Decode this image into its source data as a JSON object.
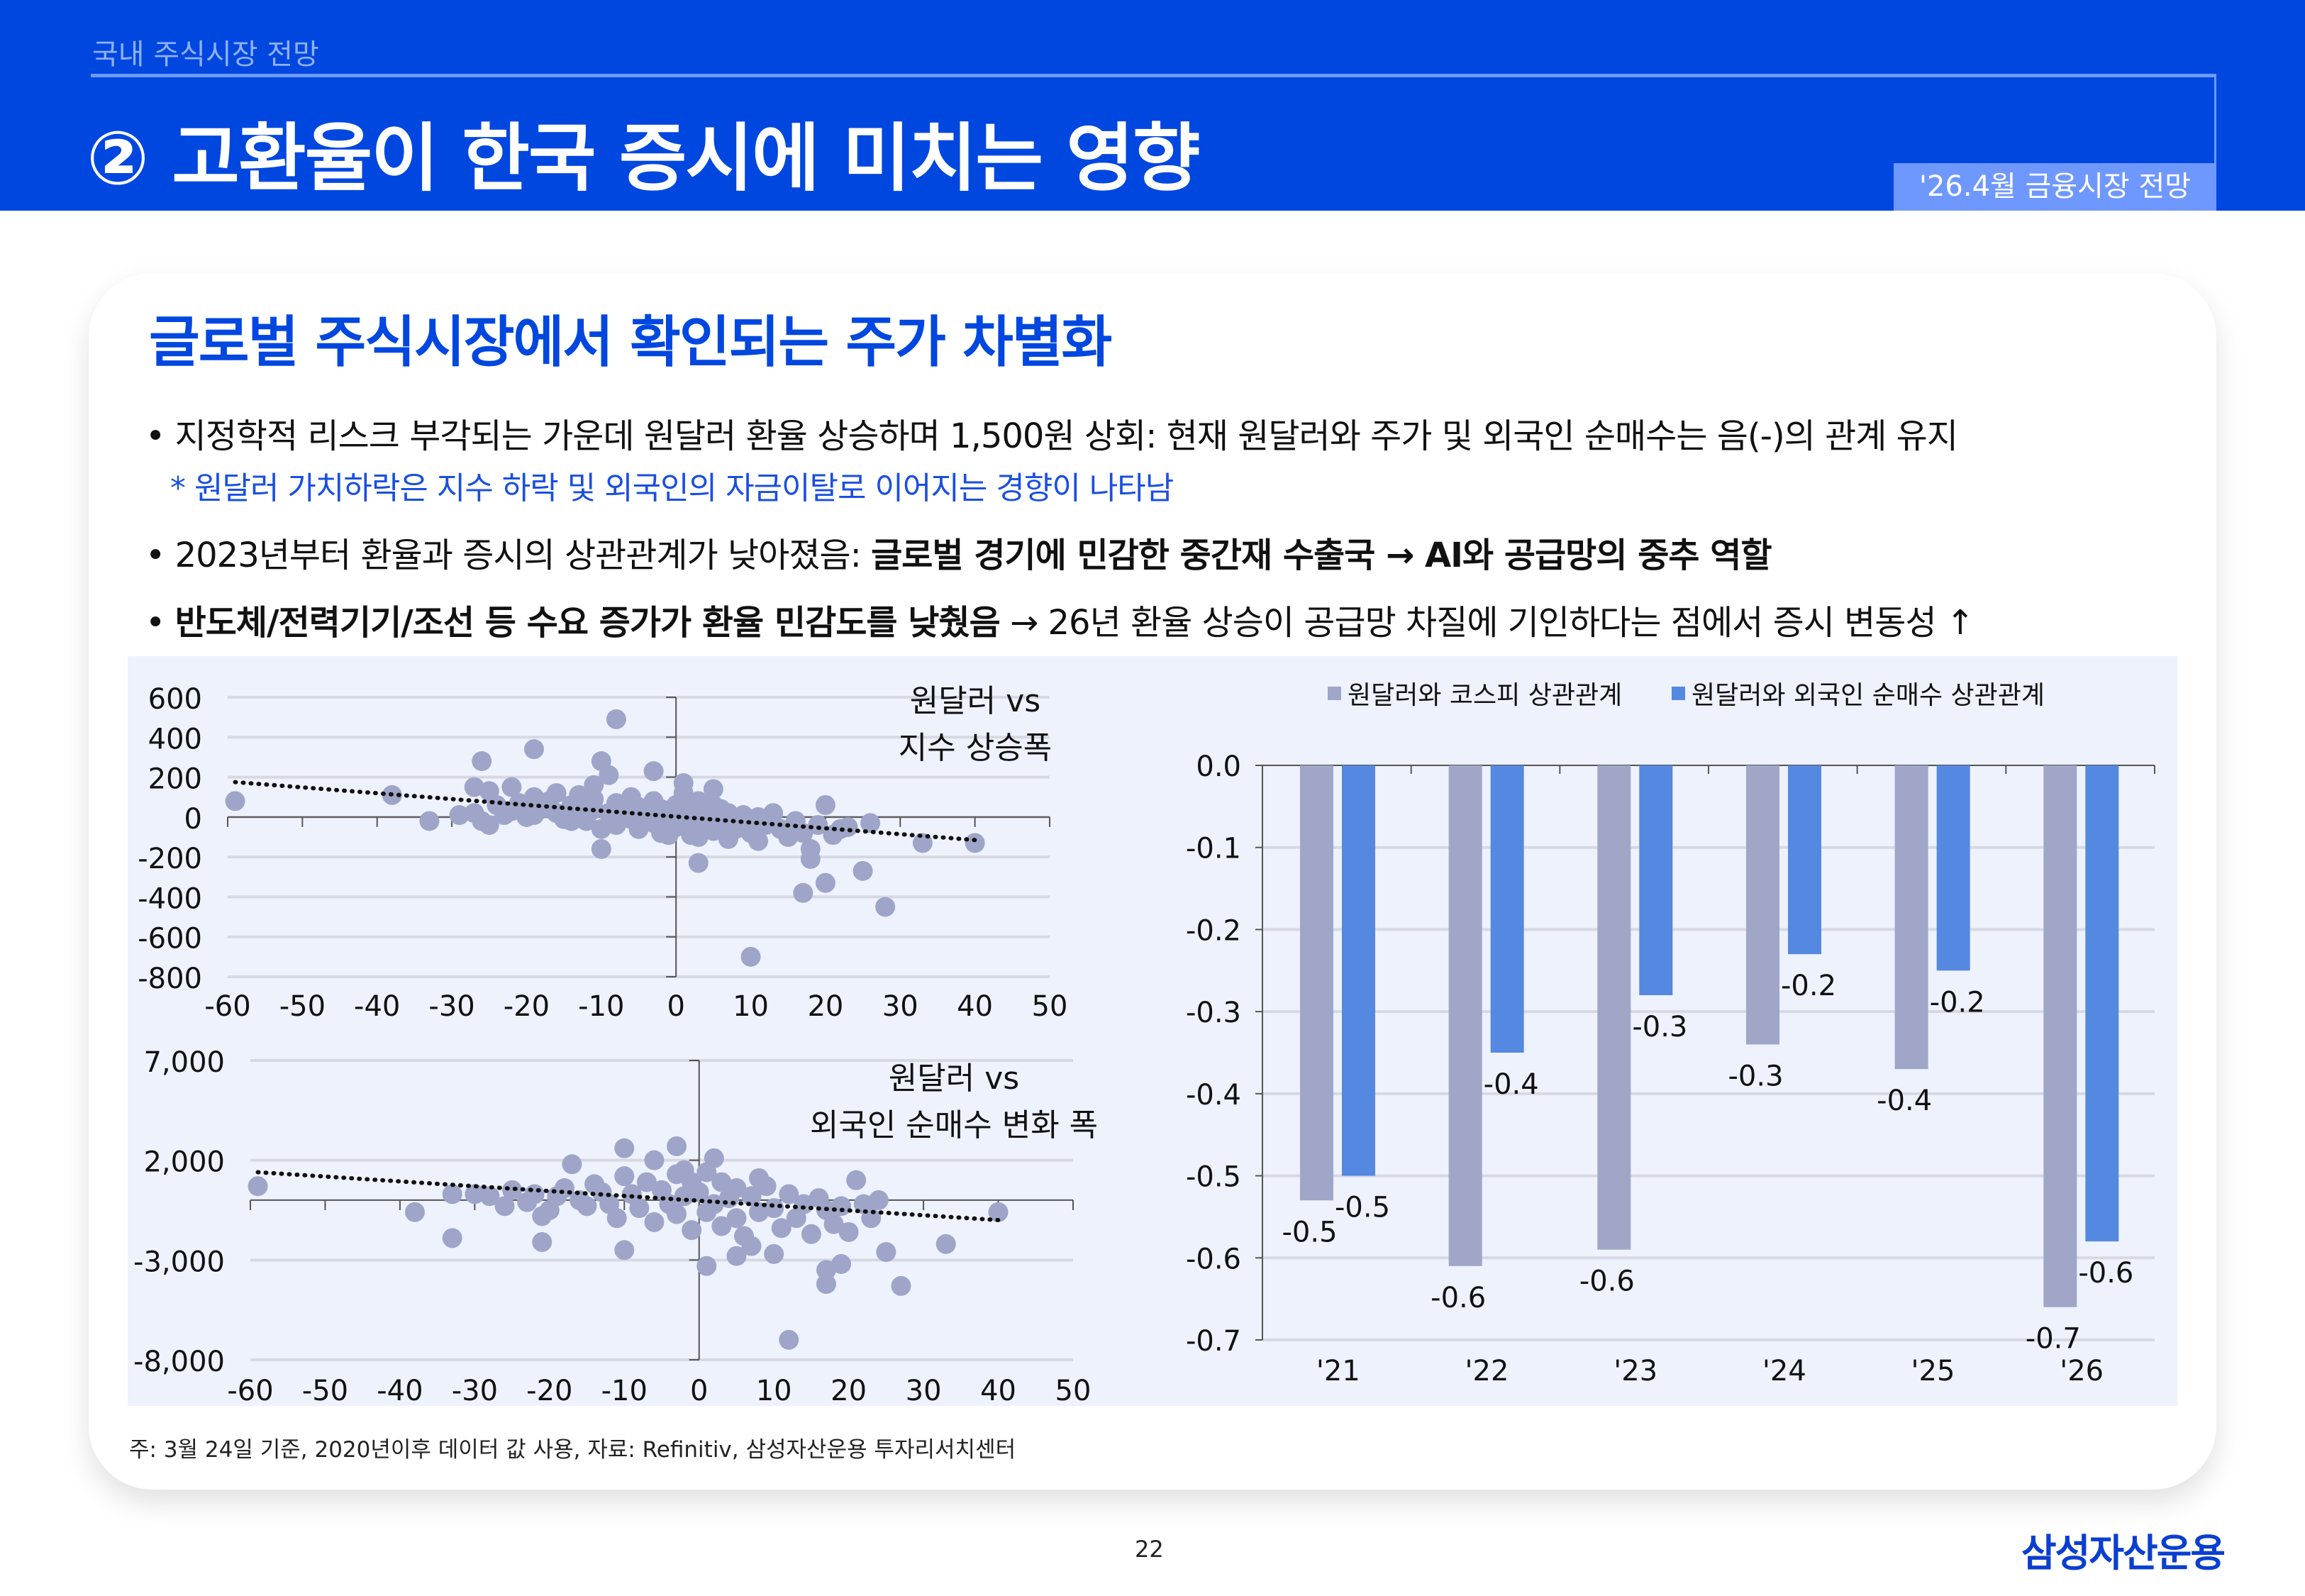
{
  "header": {
    "section": "국내 주식시장 전망",
    "title": "② 고환율이 한국 증시에 미치는 영향",
    "badge": "'26.4월 금융시장 전망"
  },
  "card": {
    "title": "글로벌 주식시장에서 확인되는 주가 차별화",
    "bullets": [
      {
        "normal": "• 지정학적 리스크 부각되는 가운데 원달러 환율 상승하며 1,500원 상회: 현재 원달러와 주가 및 외국인 순매수는 음(-)의 관계 유지",
        "bold": "",
        "tail": ""
      },
      {
        "normal": "• 2023년부터 환율과 증시의 상관관계가 낮아졌음: ",
        "bold": "글로벌 경기에 민감한 중간재 수출국 → AI와 공급망의 중추 역할",
        "tail": ""
      },
      {
        "normal": "• ",
        "bold": "반도체/전력기기/조선 등 수요 증가가 환율 민감도를 낮췄음",
        "tail": " → 26년 환율 상승이 공급망 차질에 기인하다는 점에서 증시 변동성 ↑"
      }
    ],
    "note": "* 원달러 가치하락은 지수 하락 및 외국인의 자금이탈로 이어지는 경향이 나타남"
  },
  "colors": {
    "brand": "#0047e0",
    "scatter": "#9ea5c8",
    "bar_kospi": "#a0a6c8",
    "bar_foreign": "#5588e0",
    "chart_bg": "#eef2fd"
  },
  "chart_data": [
    {
      "type": "scatter",
      "annotation": [
        "원달러 vs",
        "지수 상승폭"
      ],
      "xlim": [
        -60,
        50
      ],
      "ylim": [
        -800,
        600
      ],
      "xticks": [
        -60,
        -50,
        -40,
        -30,
        -20,
        -10,
        0,
        10,
        20,
        30,
        40,
        50
      ],
      "yticks": [
        600,
        400,
        200,
        0,
        -200,
        -400,
        -600,
        -800
      ],
      "grid": true,
      "trendline": {
        "style": "dotted",
        "from": [
          -59,
          175
        ],
        "to": [
          40,
          -115
        ]
      },
      "points": [
        [
          -59,
          80
        ],
        [
          -38,
          110
        ],
        [
          -33,
          -20
        ],
        [
          -29,
          10
        ],
        [
          -27,
          150
        ],
        [
          -26,
          280
        ],
        [
          -25,
          130
        ],
        [
          -22,
          150
        ],
        [
          -19,
          340
        ],
        [
          -19,
          100
        ],
        [
          -16,
          120
        ],
        [
          -13,
          110
        ],
        [
          -11,
          160
        ],
        [
          -10,
          280
        ],
        [
          -10,
          -160
        ],
        [
          -9,
          210
        ],
        [
          -3,
          230
        ],
        [
          -8,
          490
        ],
        [
          1,
          170
        ],
        [
          3,
          -230
        ],
        [
          5,
          140
        ],
        [
          10,
          -700
        ],
        [
          17,
          -380
        ],
        [
          18,
          -160
        ],
        [
          18,
          -210
        ],
        [
          20,
          -330
        ],
        [
          20,
          60
        ],
        [
          25,
          -270
        ],
        [
          26,
          -30
        ],
        [
          28,
          -450
        ],
        [
          33,
          -130
        ],
        [
          40,
          -130
        ],
        [
          -27,
          20
        ],
        [
          -26,
          -20
        ],
        [
          -25,
          -40
        ],
        [
          -24,
          60
        ],
        [
          -23,
          10
        ],
        [
          -22,
          30
        ],
        [
          -21,
          70
        ],
        [
          -20,
          0
        ],
        [
          -20,
          50
        ],
        [
          -18,
          40
        ],
        [
          -17,
          80
        ],
        [
          -16,
          20
        ],
        [
          -15,
          -10
        ],
        [
          -14,
          60
        ],
        [
          -13,
          30
        ],
        [
          -12,
          -20
        ],
        [
          -11,
          90
        ],
        [
          -11,
          40
        ],
        [
          -10,
          -60
        ],
        [
          -9,
          20
        ],
        [
          -8,
          70
        ],
        [
          -8,
          -40
        ],
        [
          -7,
          30
        ],
        [
          -6,
          100
        ],
        [
          -6,
          -10
        ],
        [
          -5,
          50
        ],
        [
          -5,
          -60
        ],
        [
          -4,
          20
        ],
        [
          -3,
          80
        ],
        [
          -3,
          -30
        ],
        [
          -2,
          40
        ],
        [
          -2,
          -80
        ],
        [
          -1,
          10
        ],
        [
          0,
          60
        ],
        [
          0,
          -50
        ],
        [
          1,
          120
        ],
        [
          1,
          -20
        ],
        [
          2,
          30
        ],
        [
          2,
          -90
        ],
        [
          3,
          80
        ],
        [
          3,
          -40
        ],
        [
          4,
          10
        ],
        [
          5,
          60
        ],
        [
          5,
          -70
        ],
        [
          6,
          -20
        ],
        [
          7,
          20
        ],
        [
          7,
          -110
        ],
        [
          8,
          -60
        ],
        [
          9,
          10
        ],
        [
          9,
          -30
        ],
        [
          10,
          -80
        ],
        [
          11,
          0
        ],
        [
          11,
          -120
        ],
        [
          12,
          -40
        ],
        [
          13,
          20
        ],
        [
          14,
          -60
        ],
        [
          15,
          -100
        ],
        [
          16,
          -20
        ],
        [
          17,
          -80
        ],
        [
          19,
          -40
        ],
        [
          21,
          -90
        ],
        [
          22,
          -60
        ],
        [
          23,
          -50
        ],
        [
          3,
          -100
        ],
        [
          -1,
          -90
        ],
        [
          6,
          40
        ],
        [
          -14,
          -20
        ],
        [
          -19,
          10
        ]
      ]
    },
    {
      "type": "scatter",
      "annotation": [
        "원달러 vs",
        "외국인 순매수 변화 폭"
      ],
      "xlim": [
        -60,
        50
      ],
      "ylim": [
        -8000,
        7000
      ],
      "xticks": [
        -60,
        -50,
        -40,
        -30,
        -20,
        -10,
        0,
        10,
        20,
        30,
        40,
        50
      ],
      "yticks": [
        7000,
        2000,
        -3000,
        -8000
      ],
      "grid": true,
      "trendline": {
        "style": "dotted",
        "from": [
          -59,
          1400
        ],
        "to": [
          40,
          -1000
        ]
      },
      "points": [
        [
          -59,
          700
        ],
        [
          -38,
          -600
        ],
        [
          -33,
          300
        ],
        [
          -33,
          -1900
        ],
        [
          -21,
          -2100
        ],
        [
          -17,
          1800
        ],
        [
          -10,
          2600
        ],
        [
          -10,
          -2500
        ],
        [
          -3,
          2700
        ],
        [
          -2,
          1500
        ],
        [
          1,
          -3300
        ],
        [
          2,
          2100
        ],
        [
          10,
          -2700
        ],
        [
          12,
          -7000
        ],
        [
          17,
          -4200
        ],
        [
          17,
          -3500
        ],
        [
          19,
          -3200
        ],
        [
          21,
          1000
        ],
        [
          25,
          -2600
        ],
        [
          27,
          -4300
        ],
        [
          33,
          -2200
        ],
        [
          40,
          -600
        ],
        [
          8,
          1100
        ],
        [
          -6,
          2000
        ],
        [
          5,
          -2800
        ],
        [
          -28,
          200
        ],
        [
          -26,
          -300
        ],
        [
          -25,
          500
        ],
        [
          -23,
          -100
        ],
        [
          -22,
          300
        ],
        [
          -20,
          -500
        ],
        [
          -19,
          200
        ],
        [
          -18,
          600
        ],
        [
          -16,
          0
        ],
        [
          -15,
          -300
        ],
        [
          -14,
          800
        ],
        [
          -13,
          400
        ],
        [
          -12,
          -200
        ],
        [
          -11,
          -900
        ],
        [
          -10,
          1200
        ],
        [
          -9,
          300
        ],
        [
          -8,
          -400
        ],
        [
          -7,
          900
        ],
        [
          -6,
          -1100
        ],
        [
          -5,
          500
        ],
        [
          -4,
          -200
        ],
        [
          -3,
          1300
        ],
        [
          -3,
          -700
        ],
        [
          -2,
          200
        ],
        [
          -1,
          900
        ],
        [
          -1,
          -1500
        ],
        [
          0,
          400
        ],
        [
          1,
          -600
        ],
        [
          1,
          1400
        ],
        [
          2,
          -200
        ],
        [
          3,
          900
        ],
        [
          3,
          -1300
        ],
        [
          4,
          100
        ],
        [
          5,
          -900
        ],
        [
          5,
          600
        ],
        [
          6,
          -1800
        ],
        [
          7,
          200
        ],
        [
          7,
          -2300
        ],
        [
          8,
          -600
        ],
        [
          9,
          700
        ],
        [
          10,
          -400
        ],
        [
          11,
          -1400
        ],
        [
          12,
          300
        ],
        [
          13,
          -900
        ],
        [
          14,
          -200
        ],
        [
          15,
          -1700
        ],
        [
          16,
          100
        ],
        [
          17,
          -500
        ],
        [
          18,
          -1200
        ],
        [
          19,
          -300
        ],
        [
          20,
          -1600
        ],
        [
          22,
          -200
        ],
        [
          23,
          -900
        ],
        [
          24,
          0
        ],
        [
          -30,
          300
        ],
        [
          -21,
          -800
        ]
      ]
    },
    {
      "type": "bar",
      "categories": [
        "'21",
        "'22",
        "'23",
        "'24",
        "'25",
        "'26"
      ],
      "ylim": [
        -0.7,
        0.0
      ],
      "yticks": [
        "0.0",
        "-0.1",
        "-0.2",
        "-0.3",
        "-0.4",
        "-0.5",
        "-0.6",
        "-0.7"
      ],
      "grid": true,
      "legend_position": "top",
      "series": [
        {
          "name": "원달러와 코스피 상관관계",
          "values": [
            -0.53,
            -0.61,
            -0.59,
            -0.34,
            -0.37,
            -0.66
          ],
          "labels": [
            "-0.5",
            "-0.6",
            "-0.6",
            "-0.3",
            "-0.4",
            "-0.7"
          ]
        },
        {
          "name": "원달러와 외국인 순매수 상관관계",
          "values": [
            -0.5,
            -0.35,
            -0.28,
            -0.23,
            -0.25,
            -0.58
          ],
          "labels": [
            "-0.5",
            "-0.4",
            "-0.3",
            "-0.2",
            "-0.2",
            "-0.6"
          ]
        }
      ]
    }
  ],
  "footer": {
    "footnote": "주: 3월 24일 기준, 2020년이후 데이터 값 사용, 자료: Refinitiv, 삼성자산운용 투자리서치센터",
    "page": "22",
    "logo": "삼성자산운용"
  }
}
